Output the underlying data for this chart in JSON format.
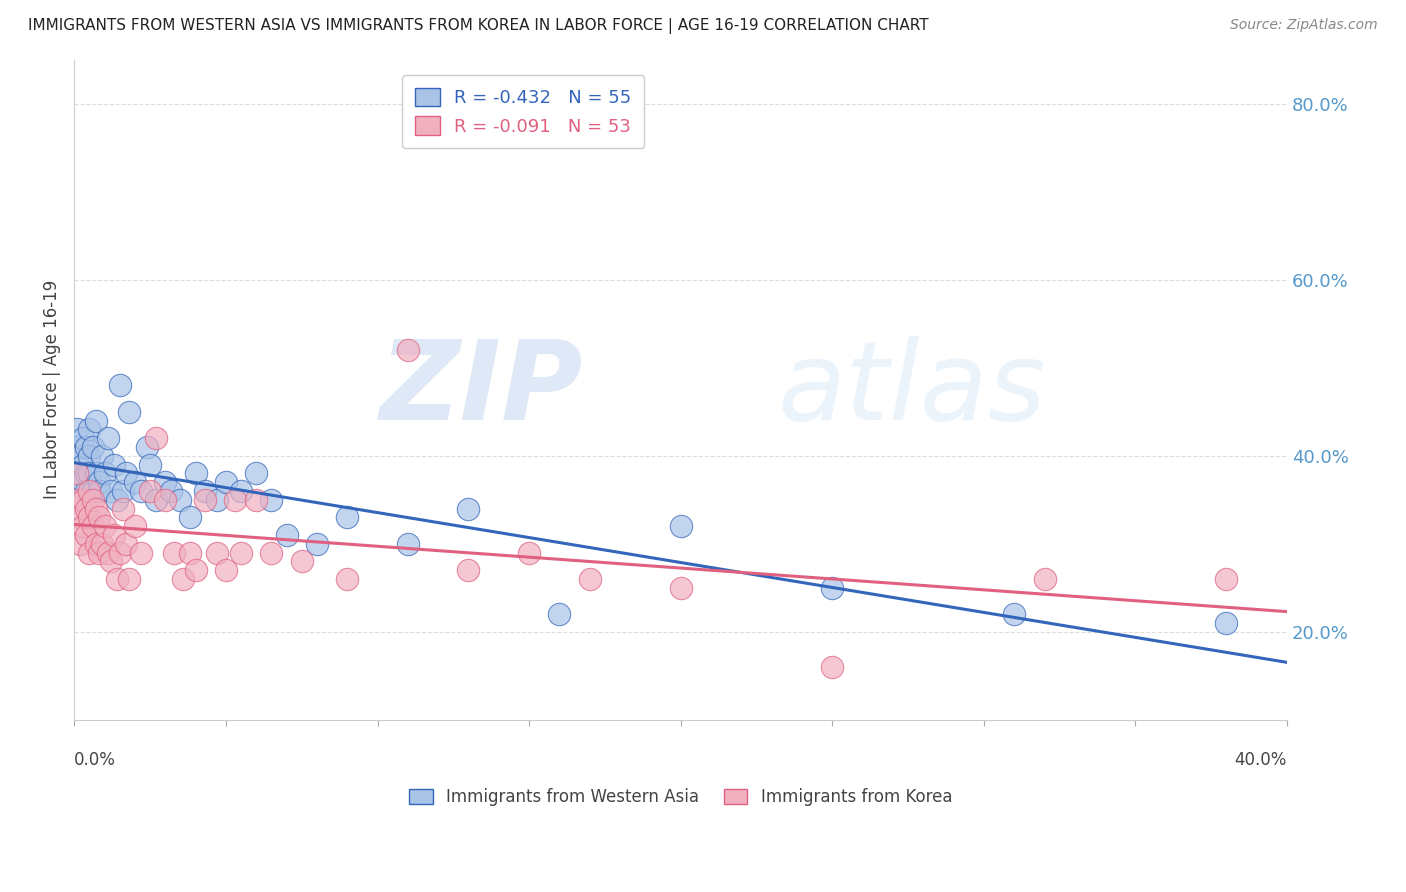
{
  "title": "IMMIGRANTS FROM WESTERN ASIA VS IMMIGRANTS FROM KOREA IN LABOR FORCE | AGE 16-19 CORRELATION CHART",
  "source": "Source: ZipAtlas.com",
  "ylabel": "In Labor Force | Age 16-19",
  "right_yticks": [
    0.2,
    0.4,
    0.6,
    0.8
  ],
  "right_yticklabels": [
    "20.0%",
    "40.0%",
    "60.0%",
    "80.0%"
  ],
  "watermark_zip": "ZIP",
  "watermark_atlas": "atlas",
  "series": [
    {
      "label": "Immigrants from Western Asia",
      "R": "-0.432",
      "N": "55",
      "color": "#aac4e8",
      "line_color": "#3366bb",
      "x": [
        0.001,
        0.001,
        0.002,
        0.002,
        0.003,
        0.003,
        0.003,
        0.004,
        0.004,
        0.004,
        0.005,
        0.005,
        0.005,
        0.006,
        0.006,
        0.007,
        0.007,
        0.008,
        0.008,
        0.009,
        0.01,
        0.011,
        0.012,
        0.013,
        0.014,
        0.015,
        0.016,
        0.017,
        0.018,
        0.02,
        0.022,
        0.024,
        0.025,
        0.027,
        0.03,
        0.032,
        0.035,
        0.038,
        0.04,
        0.043,
        0.047,
        0.05,
        0.055,
        0.06,
        0.065,
        0.07,
        0.08,
        0.09,
        0.11,
        0.13,
        0.16,
        0.2,
        0.25,
        0.31,
        0.38
      ],
      "y": [
        0.43,
        0.41,
        0.4,
        0.38,
        0.42,
        0.39,
        0.37,
        0.41,
        0.38,
        0.36,
        0.43,
        0.4,
        0.38,
        0.41,
        0.36,
        0.38,
        0.44,
        0.37,
        0.36,
        0.4,
        0.38,
        0.42,
        0.36,
        0.39,
        0.35,
        0.48,
        0.36,
        0.38,
        0.45,
        0.37,
        0.36,
        0.41,
        0.39,
        0.35,
        0.37,
        0.36,
        0.35,
        0.33,
        0.38,
        0.36,
        0.35,
        0.37,
        0.36,
        0.38,
        0.35,
        0.31,
        0.3,
        0.33,
        0.3,
        0.34,
        0.22,
        0.32,
        0.25,
        0.22,
        0.21
      ]
    },
    {
      "label": "Immigrants from Korea",
      "R": "-0.091",
      "N": "53",
      "color": "#f0b0c0",
      "line_color": "#e06080",
      "x": [
        0.001,
        0.001,
        0.002,
        0.002,
        0.003,
        0.003,
        0.004,
        0.004,
        0.005,
        0.005,
        0.005,
        0.006,
        0.006,
        0.007,
        0.007,
        0.008,
        0.008,
        0.009,
        0.01,
        0.011,
        0.012,
        0.013,
        0.014,
        0.015,
        0.016,
        0.017,
        0.018,
        0.02,
        0.022,
        0.025,
        0.027,
        0.03,
        0.033,
        0.036,
        0.038,
        0.04,
        0.043,
        0.047,
        0.05,
        0.053,
        0.055,
        0.06,
        0.065,
        0.075,
        0.09,
        0.11,
        0.13,
        0.15,
        0.17,
        0.2,
        0.25,
        0.32,
        0.38
      ],
      "y": [
        0.38,
        0.35,
        0.33,
        0.3,
        0.35,
        0.32,
        0.34,
        0.31,
        0.36,
        0.33,
        0.29,
        0.35,
        0.32,
        0.34,
        0.3,
        0.33,
        0.29,
        0.3,
        0.32,
        0.29,
        0.28,
        0.31,
        0.26,
        0.29,
        0.34,
        0.3,
        0.26,
        0.32,
        0.29,
        0.36,
        0.42,
        0.35,
        0.29,
        0.26,
        0.29,
        0.27,
        0.35,
        0.29,
        0.27,
        0.35,
        0.29,
        0.35,
        0.29,
        0.28,
        0.26,
        0.52,
        0.27,
        0.29,
        0.26,
        0.25,
        0.16,
        0.26,
        0.26
      ]
    }
  ],
  "xlim": [
    0.0,
    0.4
  ],
  "ylim": [
    0.1,
    0.85
  ],
  "figsize": [
    14.06,
    8.92
  ],
  "dpi": 100
}
